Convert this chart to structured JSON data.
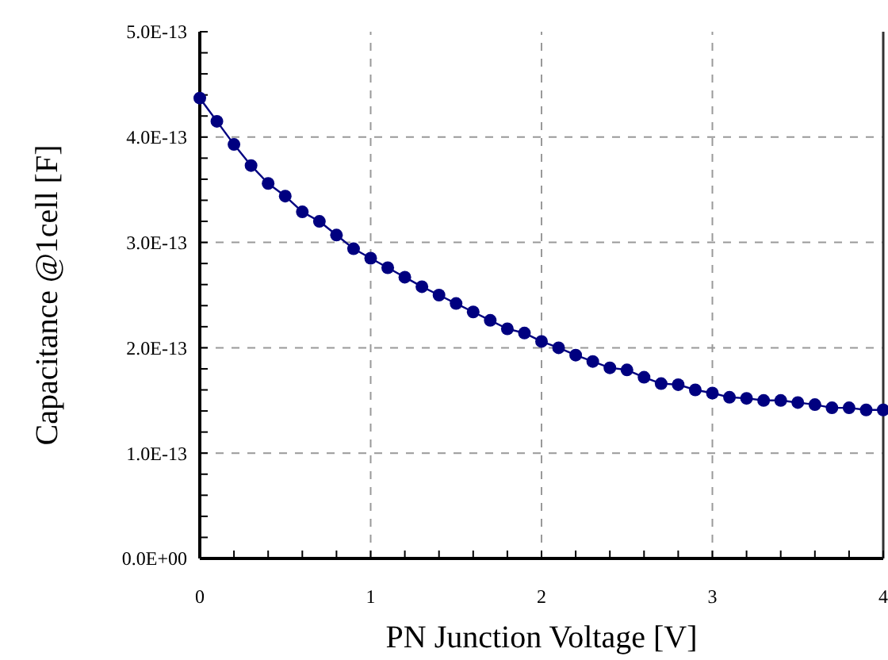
{
  "chart_data": {
    "type": "line",
    "xlabel": "PN Junction Voltage  [V]",
    "ylabel": "Capacitance @1cell  [F]",
    "x": [
      0,
      0.1,
      0.2,
      0.3,
      0.4,
      0.5,
      0.6,
      0.7,
      0.8,
      0.9,
      1,
      1.1,
      1.2,
      1.3,
      1.4,
      1.5,
      1.6,
      1.7,
      1.8,
      1.9,
      2,
      2.1,
      2.2,
      2.3,
      2.4,
      2.5,
      2.6,
      2.7,
      2.8,
      2.9,
      3,
      3.1,
      3.2,
      3.3,
      3.4,
      3.5,
      3.6,
      3.7,
      3.8,
      3.9,
      4
    ],
    "series": [
      {
        "color": "#000080",
        "values": [
          4.37e-13,
          4.15e-13,
          3.93e-13,
          3.73e-13,
          3.56e-13,
          3.44e-13,
          3.29e-13,
          3.2e-13,
          3.07e-13,
          2.94e-13,
          2.85e-13,
          2.76e-13,
          2.67e-13,
          2.58e-13,
          2.5e-13,
          2.42e-13,
          2.34e-13,
          2.26e-13,
          2.18e-13,
          2.14e-13,
          2.06e-13,
          2e-13,
          1.93e-13,
          1.87e-13,
          1.81e-13,
          1.79e-13,
          1.72e-13,
          1.66e-13,
          1.65e-13,
          1.6e-13,
          1.57e-13,
          1.53e-13,
          1.52e-13,
          1.5e-13,
          1.5e-13,
          1.48e-13,
          1.46e-13,
          1.43e-13,
          1.43e-13,
          1.41e-13,
          1.41e-13
        ]
      }
    ],
    "xlim": [
      0,
      4
    ],
    "ylim": [
      0,
      5e-13
    ],
    "xticks": [
      0,
      {
        "value": 0.2,
        "label": null
      },
      {
        "value": 0.4,
        "label": null
      },
      {
        "value": 0.6,
        "label": null
      },
      {
        "value": 0.8,
        "label": null
      },
      1,
      {
        "value": 1.2,
        "label": null
      },
      {
        "value": 1.4,
        "label": null
      },
      {
        "value": 1.6,
        "label": null
      },
      {
        "value": 1.8,
        "label": null
      },
      2,
      {
        "value": 2.2,
        "label": null
      },
      {
        "value": 2.4,
        "label": null
      },
      {
        "value": 2.6,
        "label": null
      },
      {
        "value": 2.8,
        "label": null
      },
      3,
      {
        "value": 3.2,
        "label": null
      },
      {
        "value": 3.4,
        "label": null
      },
      {
        "value": 3.6,
        "label": null
      },
      {
        "value": 3.8,
        "label": null
      },
      4
    ],
    "yticks": [
      {
        "value": 0,
        "label": "0.0E+00"
      },
      {
        "value": 2e-14,
        "label": null
      },
      {
        "value": 4e-14,
        "label": null
      },
      {
        "value": 6e-14,
        "label": null
      },
      {
        "value": 8e-14,
        "label": null
      },
      {
        "value": 1e-13,
        "label": "1.0E-13"
      },
      {
        "value": 1.2e-13,
        "label": null
      },
      {
        "value": 1.4e-13,
        "label": null
      },
      {
        "value": 1.6e-13,
        "label": null
      },
      {
        "value": 1.8e-13,
        "label": null
      },
      {
        "value": 2e-13,
        "label": "2.0E-13"
      },
      {
        "value": 2.2e-13,
        "label": null
      },
      {
        "value": 2.4e-13,
        "label": null
      },
      {
        "value": 2.6e-13,
        "label": null
      },
      {
        "value": 2.8e-13,
        "label": null
      },
      {
        "value": 3e-13,
        "label": "3.0E-13"
      },
      {
        "value": 3.2e-13,
        "label": null
      },
      {
        "value": 3.4e-13,
        "label": null
      },
      {
        "value": 3.6e-13,
        "label": null
      },
      {
        "value": 3.8e-13,
        "label": null
      },
      {
        "value": 4e-13,
        "label": "4.0E-13"
      },
      {
        "value": 4.2e-13,
        "label": null
      },
      {
        "value": 4.4e-13,
        "label": null
      },
      {
        "value": 4.6e-13,
        "label": null
      },
      {
        "value": 4.8e-13,
        "label": null
      },
      {
        "value": 5e-13,
        "label": "5.0E-13"
      }
    ],
    "grid": true,
    "marker": "circle",
    "line_style": "solid"
  }
}
